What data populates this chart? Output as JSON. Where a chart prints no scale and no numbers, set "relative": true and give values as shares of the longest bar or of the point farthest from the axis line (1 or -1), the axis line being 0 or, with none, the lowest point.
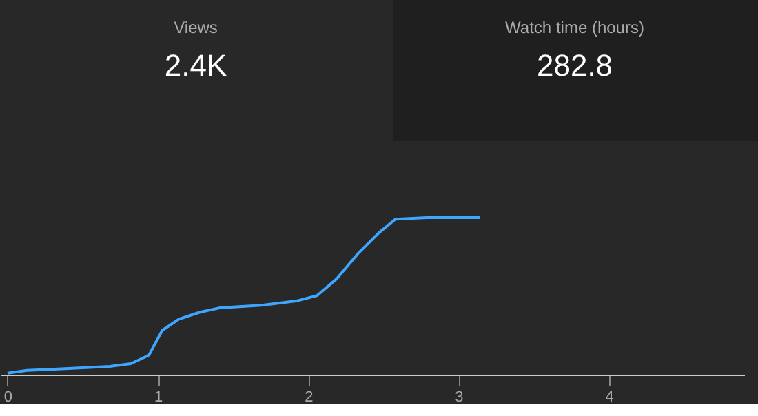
{
  "chart_data": {
    "type": "line",
    "relative": true,
    "annotations": [
      "Views",
      "2.4K",
      "Watch time (hours)",
      "282.8"
    ],
    "xlim": [
      -0.05,
      4.9
    ],
    "xticks": [
      0,
      1,
      2,
      3,
      4
    ],
    "marker": "none",
    "line_style": "solid",
    "series": [
      {
        "color": "#3ea6ff",
        "x": [
          0,
          0.13,
          0.31,
          0.5,
          0.68,
          0.82,
          0.94,
          0.98,
          1.03,
          1.14,
          1.28,
          1.41,
          1.69,
          1.92,
          2.06,
          2.19,
          2.33,
          2.47,
          2.58,
          2.79,
          3.14
        ],
        "values": [
          0.01,
          0.027,
          0.035,
          0.044,
          0.053,
          0.07,
          0.124,
          0.195,
          0.283,
          0.354,
          0.398,
          0.425,
          0.442,
          0.469,
          0.504,
          0.611,
          0.77,
          0.903,
          0.99,
          1.0,
          1.0
        ]
      }
    ]
  }
}
